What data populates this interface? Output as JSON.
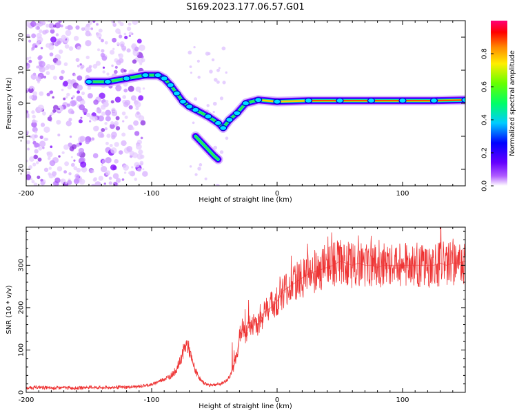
{
  "title": "S169.2023.177.06.57.G01",
  "chart_data": [
    {
      "type": "heatmap",
      "xlabel": "Height of straight line (km)",
      "ylabel": "Frequency (Hz)",
      "xlim": [
        -200,
        150
      ],
      "ylim": [
        -25,
        25
      ],
      "xticks": [
        "-200",
        "-100",
        "0",
        "100"
      ],
      "yticks": [
        "-20",
        "-10",
        "0",
        "10",
        "20"
      ],
      "colorbar": {
        "label": "Normalized spectral amplitude",
        "range": [
          0,
          1
        ],
        "ticks": [
          "0.0",
          "0.2",
          "0.4",
          "0.6",
          "0.8"
        ]
      },
      "ridge": [
        {
          "x": -150,
          "y": 6.5
        },
        {
          "x": -135,
          "y": 6.5
        },
        {
          "x": -120,
          "y": 7.5
        },
        {
          "x": -105,
          "y": 8.5
        },
        {
          "x": -95,
          "y": 8.5
        },
        {
          "x": -90,
          "y": 7.5
        },
        {
          "x": -85,
          "y": 5.5
        },
        {
          "x": -80,
          "y": 3
        },
        {
          "x": -75,
          "y": 0.5
        },
        {
          "x": -70,
          "y": -1
        },
        {
          "x": -65,
          "y": -2
        },
        {
          "x": -55,
          "y": -4
        },
        {
          "x": -47,
          "y": -6
        },
        {
          "x": -43,
          "y": -7.5
        },
        {
          "x": -38,
          "y": -5
        },
        {
          "x": -32,
          "y": -3
        },
        {
          "x": -25,
          "y": 0
        },
        {
          "x": -15,
          "y": 1
        },
        {
          "x": 0,
          "y": 0.5
        },
        {
          "x": 25,
          "y": 0.8
        },
        {
          "x": 50,
          "y": 0.8
        },
        {
          "x": 75,
          "y": 0.8
        },
        {
          "x": 100,
          "y": 0.8
        },
        {
          "x": 125,
          "y": 0.8
        },
        {
          "x": 150,
          "y": 1
        }
      ],
      "branch": [
        {
          "x": -65,
          "y": -10
        },
        {
          "x": -60,
          "y": -12
        },
        {
          "x": -55,
          "y": -14
        },
        {
          "x": -50,
          "y": -16
        },
        {
          "x": -47,
          "y": -17
        }
      ]
    },
    {
      "type": "line",
      "xlabel": "Height of straight line (km)",
      "ylabel": "SNR (10 * v/v)",
      "xlim": [
        -200,
        150
      ],
      "ylim": [
        0,
        390
      ],
      "xticks": [
        "-200",
        "-100",
        "0",
        "100"
      ],
      "yticks": [
        "0",
        "100",
        "200",
        "300"
      ],
      "series": [
        {
          "color": "#ee3333",
          "x": [
            -200,
            -190,
            -180,
            -170,
            -160,
            -150,
            -140,
            -130,
            -120,
            -110,
            -100,
            -95,
            -90,
            -85,
            -80,
            -77,
            -75,
            -72,
            -70,
            -68,
            -65,
            -62,
            -60,
            -55,
            -50,
            -45,
            -40,
            -35,
            -32,
            -30,
            -28,
            -25,
            -22,
            -20,
            -18,
            -15,
            -12,
            -10,
            -5,
            0,
            5,
            10,
            15,
            20,
            25,
            30,
            35,
            40,
            45,
            50,
            55,
            60,
            65,
            70,
            75,
            80,
            85,
            90,
            95,
            100,
            105,
            110,
            115,
            120,
            125,
            130,
            135,
            140,
            145,
            150
          ],
          "values": [
            10,
            12,
            10,
            11,
            10,
            12,
            11,
            12,
            12,
            14,
            18,
            25,
            32,
            38,
            55,
            75,
            95,
            115,
            100,
            75,
            50,
            35,
            25,
            18,
            18,
            20,
            28,
            55,
            90,
            130,
            150,
            140,
            160,
            150,
            170,
            160,
            180,
            190,
            200,
            215,
            240,
            250,
            260,
            270,
            280,
            285,
            290,
            295,
            300,
            310,
            305,
            300,
            305,
            300,
            300,
            295,
            300,
            300,
            300,
            300,
            300,
            300,
            300,
            300,
            300,
            305,
            300,
            305,
            305,
            310
          ]
        }
      ]
    }
  ]
}
